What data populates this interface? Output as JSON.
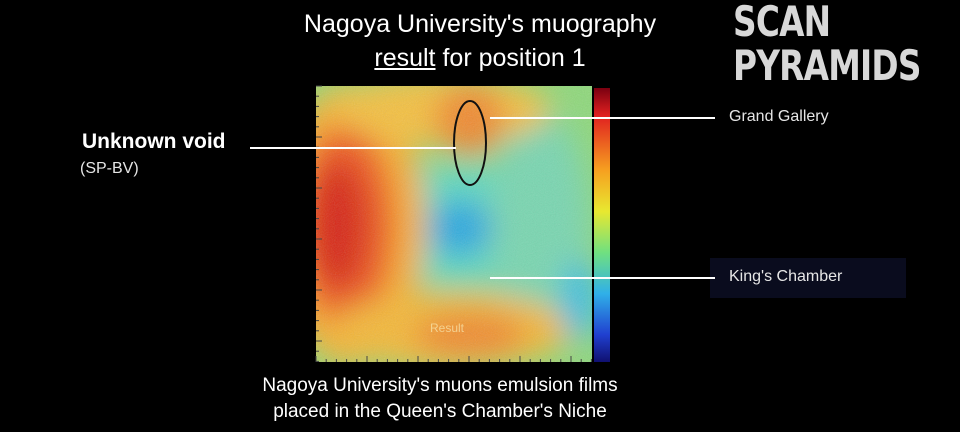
{
  "title": {
    "line1": "Nagoya University's muography",
    "line2_underlined": "result",
    "line2_rest": "for position 1"
  },
  "logo": {
    "line1": "SCAN",
    "line2": "PYRAMIDS"
  },
  "annotations": {
    "unknown_void": {
      "label": "Unknown void",
      "sublabel": "(SP-BV)"
    },
    "grand_gallery": {
      "label": "Grand Gallery"
    },
    "kings_chamber": {
      "label": "King's Chamber"
    }
  },
  "image_watermark": "Result",
  "caption": {
    "line1": "Nagoya University's muons emulsion films",
    "line2": "placed in the Queen's Chamber's Niche"
  }
}
